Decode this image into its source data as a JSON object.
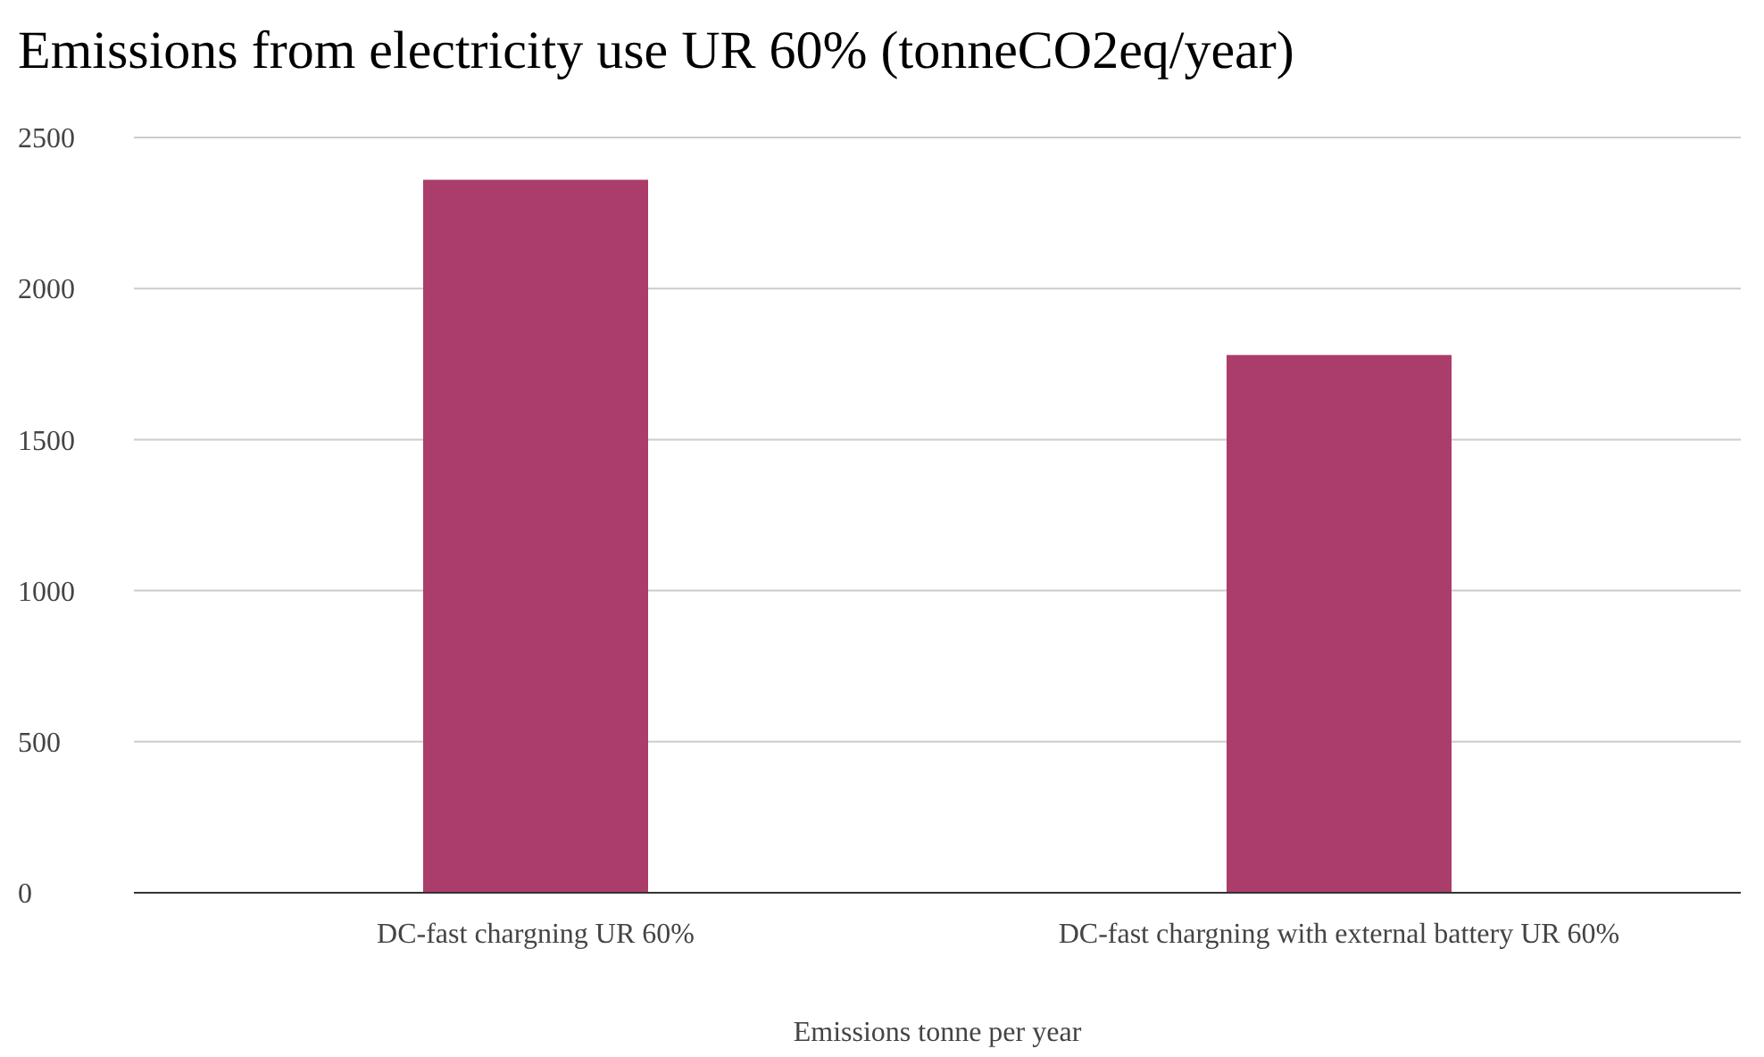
{
  "chart_data": {
    "type": "bar",
    "title": "Emissions from electricity use UR 60% (tonneCO2eq/year)",
    "xlabel": "Emissions tonne per year",
    "categories": [
      "DC-fast chargning UR 60%",
      "DC-fast chargning with external battery UR 60%"
    ],
    "values": [
      2360,
      1780
    ],
    "color": "#ab3d6b",
    "ylim": [
      0,
      2500
    ],
    "yticks": [
      0,
      500,
      1000,
      1500,
      2000,
      2500
    ],
    "grid": "y"
  }
}
